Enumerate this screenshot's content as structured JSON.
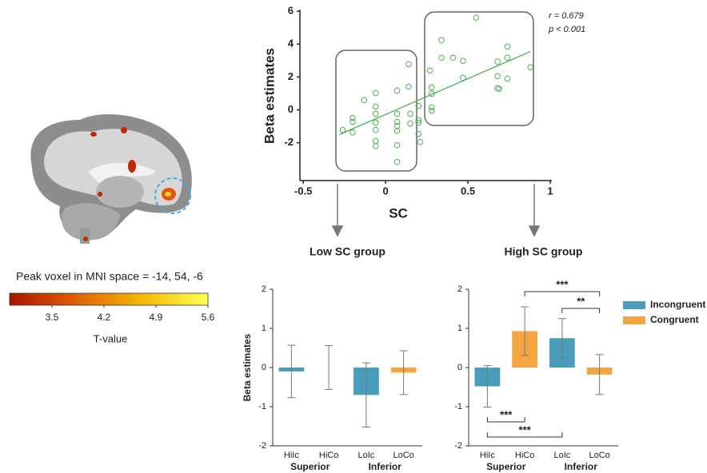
{
  "chart_data": [
    {
      "type": "colorbar",
      "title": "Peak voxel in MNI space = -14, 54, -6",
      "xlabel": "T-value",
      "xlim": [
        2.93,
        5.6
      ],
      "xticks": [
        3.5,
        4.2,
        4.9,
        5.6
      ],
      "colors": [
        "#a81400",
        "#e06000",
        "#f5b800",
        "#ffff55"
      ]
    },
    {
      "type": "scatter",
      "ylabel": "Beta estimates",
      "xlabel": "SC",
      "color": "#4caf50",
      "annotations": [
        "r = 0.679",
        "p < 0.001"
      ],
      "xlim": [
        -0.52,
        1.0
      ],
      "xticks": [
        -0.5,
        0.0,
        0.5,
        1.0
      ],
      "ylim": [
        -4.3,
        6
      ],
      "yticks": [
        -2,
        0,
        2,
        4,
        6
      ],
      "x": [
        -0.26,
        -0.2,
        -0.2,
        -0.2,
        -0.13,
        -0.06,
        -0.06,
        -0.06,
        -0.06,
        -0.06,
        -0.06,
        -0.06,
        0.07,
        0.07,
        0.07,
        0.07,
        0.07,
        0.07,
        0.07,
        0.14,
        0.14,
        0.15,
        0.15,
        0.2,
        0.2,
        0.2,
        0.2,
        0.21,
        0.27,
        0.28,
        0.28,
        0.28,
        0.28,
        0.34,
        0.34,
        0.41,
        0.47,
        0.47,
        0.55,
        0.68,
        0.68,
        0.68,
        0.69,
        0.74,
        0.74,
        0.74,
        0.88
      ],
      "values": [
        -1.22,
        -0.49,
        -0.73,
        -1.37,
        0.59,
        1.02,
        0.2,
        -0.24,
        -0.78,
        -1.22,
        -1.9,
        -2.2,
        1.17,
        -0.24,
        -0.73,
        -0.98,
        -1.27,
        -2.15,
        -3.17,
        2.78,
        1.41,
        -0.24,
        -0.83,
        0.24,
        -0.63,
        -0.78,
        -1.46,
        -1.95,
        2.39,
        1.37,
        0.98,
        0.15,
        -0.05,
        4.24,
        3.17,
        3.17,
        2.98,
        1.95,
        5.61,
        2.93,
        2.05,
        1.32,
        1.27,
        3.85,
        3.17,
        1.9,
        2.59
      ],
      "fit": {
        "x": [
          -0.28,
          0.88
        ],
        "values": [
          -1.5,
          3.55
        ]
      }
    },
    {
      "type": "bar",
      "title": "Low SC group",
      "ylabel": "Beta estimates",
      "categories": [
        "HiIc",
        "HiCo",
        "LoIc",
        "LoCo"
      ],
      "groups": [
        {
          "label": "Superior",
          "span": [
            0,
            1
          ]
        },
        {
          "label": "Inferior",
          "span": [
            2,
            3
          ]
        }
      ],
      "values": [
        -0.1,
        0,
        -0.7,
        -0.13
      ],
      "errors": [
        0.67,
        0.56,
        0.82,
        0.56
      ],
      "colors": [
        "#4a9dbb",
        "#f2a541",
        "#4a9dbb",
        "#f2a541"
      ],
      "ylim": [
        -2,
        2
      ],
      "yticks": [
        -2,
        -1,
        0,
        1,
        2
      ]
    },
    {
      "type": "bar",
      "title": "High SC group",
      "categories": [
        "HiIc",
        "HiCo",
        "LoIc",
        "LoCo"
      ],
      "groups": [
        {
          "label": "Superior",
          "span": [
            0,
            1
          ]
        },
        {
          "label": "Inferior",
          "span": [
            2,
            3
          ]
        }
      ],
      "values": [
        -0.48,
        0.93,
        0.75,
        -0.18
      ],
      "errors": [
        0.53,
        0.62,
        0.5,
        0.51
      ],
      "colors": [
        "#4a9dbb",
        "#f2a541",
        "#4a9dbb",
        "#f2a541"
      ],
      "ylim": [
        -2,
        2
      ],
      "yticks": [
        -2,
        -1,
        0,
        1,
        2
      ],
      "legend": [
        {
          "name": "Incongruent",
          "color": "#4a9dbb"
        },
        {
          "name": "Congruent",
          "color": "#f2a541"
        }
      ],
      "significance": [
        {
          "pair": [
            1,
            3
          ],
          "label": "***",
          "side": "above"
        },
        {
          "pair": [
            2,
            3
          ],
          "label": "**",
          "side": "above"
        },
        {
          "pair": [
            0,
            1
          ],
          "label": "***",
          "side": "below"
        },
        {
          "pair": [
            0,
            2
          ],
          "label": "***",
          "side": "below"
        }
      ]
    }
  ]
}
